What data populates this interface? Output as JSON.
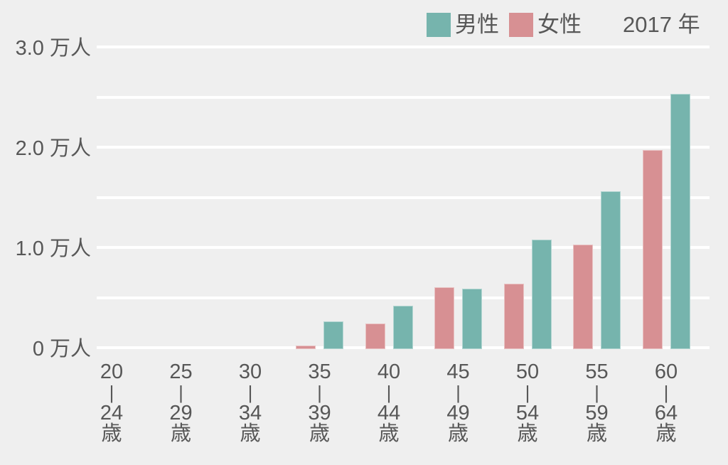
{
  "legend": {
    "year_label": "2017 年"
  },
  "colors": {
    "male": "#76b4ad",
    "female": "#d79093",
    "background": "#efefef",
    "gridline": "#ffffff",
    "text": "#575757"
  },
  "chart_data": {
    "type": "bar",
    "title": "",
    "year": "2017 年",
    "unit": "万人",
    "legend_position": "top-right",
    "grid": "on",
    "background": "#efefef",
    "categories": [
      {
        "from": "20",
        "to": "24"
      },
      {
        "from": "25",
        "to": "29"
      },
      {
        "from": "30",
        "to": "34"
      },
      {
        "from": "35",
        "to": "39"
      },
      {
        "from": "40",
        "to": "44"
      },
      {
        "from": "45",
        "to": "49"
      },
      {
        "from": "50",
        "to": "54"
      },
      {
        "from": "55",
        "to": "59"
      },
      {
        "from": "60",
        "to": "64"
      }
    ],
    "category_separator": "|",
    "category_suffix": "歳",
    "series": [
      {
        "name": "男性",
        "color": "#76b4ad",
        "values": [
          0,
          0,
          0,
          0.26,
          0.42,
          0.59,
          1.08,
          1.56,
          2.53
        ]
      },
      {
        "name": "女性",
        "color": "#d79093",
        "values": [
          0,
          0,
          0,
          0.02,
          0.24,
          0.6,
          0.64,
          1.03,
          1.97
        ]
      }
    ],
    "ylim": [
      0,
      3
    ],
    "grid_step": 0.5,
    "y_ticks": [
      {
        "value": 3.0,
        "label": "3.0 万人"
      },
      {
        "value": 2.0,
        "label": "2.0 万人"
      },
      {
        "value": 1.0,
        "label": "1.0 万人"
      },
      {
        "value": 0,
        "label": "0 万人"
      }
    ]
  }
}
